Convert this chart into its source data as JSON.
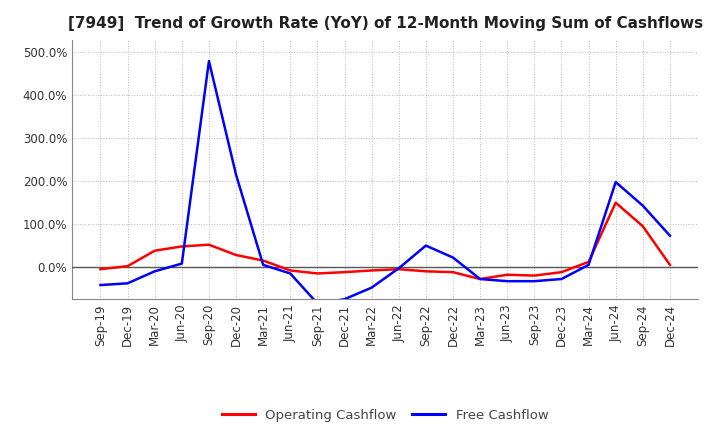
{
  "title": "[7949]  Trend of Growth Rate (YoY) of 12-Month Moving Sum of Cashflows",
  "x_labels": [
    "Sep-19",
    "Dec-19",
    "Mar-20",
    "Jun-20",
    "Sep-20",
    "Dec-20",
    "Mar-21",
    "Jun-21",
    "Sep-21",
    "Dec-21",
    "Mar-22",
    "Jun-22",
    "Sep-22",
    "Dec-22",
    "Mar-23",
    "Jun-23",
    "Sep-23",
    "Dec-23",
    "Mar-24",
    "Jun-24",
    "Sep-24",
    "Dec-24"
  ],
  "operating_cashflow": [
    -5,
    2,
    38,
    48,
    52,
    28,
    15,
    -8,
    -15,
    -12,
    -8,
    -5,
    -10,
    -12,
    -28,
    -18,
    -20,
    -12,
    12,
    150,
    95,
    5
  ],
  "free_cashflow": [
    -42,
    -38,
    -10,
    8,
    480,
    215,
    5,
    -15,
    -85,
    -75,
    -48,
    -3,
    50,
    22,
    -28,
    -33,
    -33,
    -28,
    5,
    198,
    143,
    73
  ],
  "operating_color": "#FF0000",
  "free_color": "#0000FF",
  "ylim_min": -75,
  "ylim_max": 530,
  "ytick_vals": [
    0,
    100,
    200,
    300,
    400,
    500
  ],
  "ytick_labels": [
    "0.0%",
    "100.0%",
    "200.0%",
    "300.0%",
    "400.0%",
    "500.0%"
  ],
  "legend_op": "Operating Cashflow",
  "legend_free": "Free Cashflow",
  "background_color": "#FFFFFF",
  "grid_color": "#BBBBBB",
  "zero_line_color": "#555555",
  "title_fontsize": 11,
  "tick_fontsize": 8.5,
  "legend_fontsize": 9.5
}
